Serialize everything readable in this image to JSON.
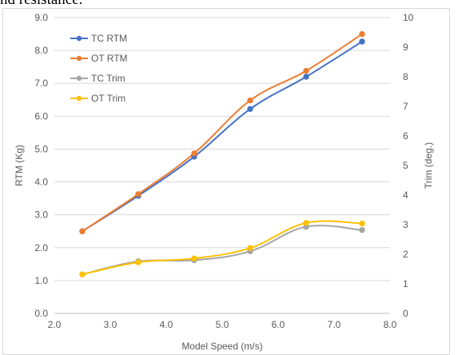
{
  "caption_fragment": "nd resistance.",
  "chart_data": {
    "type": "line",
    "title": "",
    "xlabel": "Model Speed (m/s)",
    "ylabel": "RTM (Kg)",
    "y2label": "Trim (deg.)",
    "xlim": [
      2.0,
      8.0
    ],
    "ylim": [
      0.0,
      9.0
    ],
    "y2lim": [
      0,
      10
    ],
    "x_ticks": [
      "2.0",
      "3.0",
      "4.0",
      "5.0",
      "6.0",
      "7.0",
      "8.0"
    ],
    "y_ticks": [
      "0.0",
      "1.0",
      "2.0",
      "3.0",
      "4.0",
      "5.0",
      "6.0",
      "7.0",
      "8.0",
      "9.0"
    ],
    "y2_ticks": [
      "0",
      "1",
      "2",
      "3",
      "4",
      "5",
      "6",
      "7",
      "8",
      "9",
      "10"
    ],
    "grid": "horizontal",
    "legend_position": "top-left",
    "x": [
      2.5,
      3.5,
      4.5,
      5.5,
      6.5,
      7.5
    ],
    "series": [
      {
        "name": "TC RTM",
        "axis": "left",
        "color": "#4472c4",
        "marker": "circle",
        "values": [
          2.5,
          3.58,
          4.77,
          6.22,
          7.2,
          8.27
        ]
      },
      {
        "name": "OT RTM",
        "axis": "left",
        "color": "#ed7d31",
        "marker": "circle",
        "values": [
          2.5,
          3.63,
          4.87,
          6.48,
          7.38,
          8.5
        ]
      },
      {
        "name": "TC Trim",
        "axis": "right",
        "color": "#a5a5a5",
        "marker": "circle",
        "values": [
          1.32,
          1.76,
          1.8,
          2.1,
          2.93,
          2.82
        ]
      },
      {
        "name": "OT Trim",
        "axis": "right",
        "color": "#ffc000",
        "marker": "circle",
        "values": [
          1.32,
          1.73,
          1.86,
          2.21,
          3.06,
          3.04
        ]
      }
    ]
  }
}
